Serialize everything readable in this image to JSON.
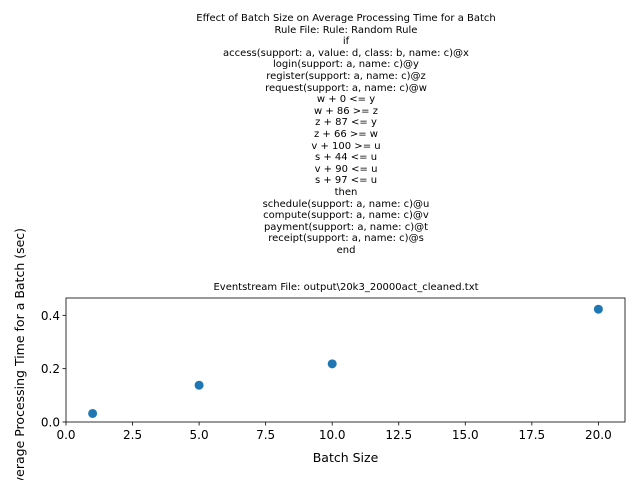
{
  "chart_data": {
    "type": "scatter",
    "title_lines": [
      "Effect of Batch Size on Average Processing Time for a Batch",
      "Rule File: Rule: Random Rule",
      "if",
      "access(support: a, value: d, class: b, name: c)@x",
      "login(support: a, name: c)@y",
      "register(support: a, name: c)@z",
      "request(support: a, name: c)@w",
      "w + 0 <= y",
      "w + 86 >= z",
      "z + 87 <= y",
      "z + 66 >= w",
      "v + 100 >= u",
      "s + 44 <= u",
      "v + 90 <= u",
      "s + 97 <= u",
      "then",
      "schedule(support: a, name: c)@u",
      "compute(support: a, name: c)@v",
      "payment(support: a, name: c)@t",
      "receipt(support: a, name: c)@s",
      "end"
    ],
    "subtitle": "Eventstream File: output\\20k3_20000act_cleaned.txt",
    "xlabel": "Batch Size",
    "ylabel": "Average Processing Time for a Batch (sec)",
    "xlim": [
      0,
      21
    ],
    "ylim": [
      0,
      0.465
    ],
    "xticks": [
      "0.0",
      "2.5",
      "5.0",
      "7.5",
      "10.0",
      "12.5",
      "15.0",
      "17.5",
      "20.0"
    ],
    "yticks": [
      "0.0",
      "0.2",
      "0.4"
    ],
    "x": [
      1,
      5,
      10,
      20
    ],
    "y": [
      0.032,
      0.138,
      0.218,
      0.423
    ],
    "point_color": "#1f77b4",
    "grid": false
  }
}
